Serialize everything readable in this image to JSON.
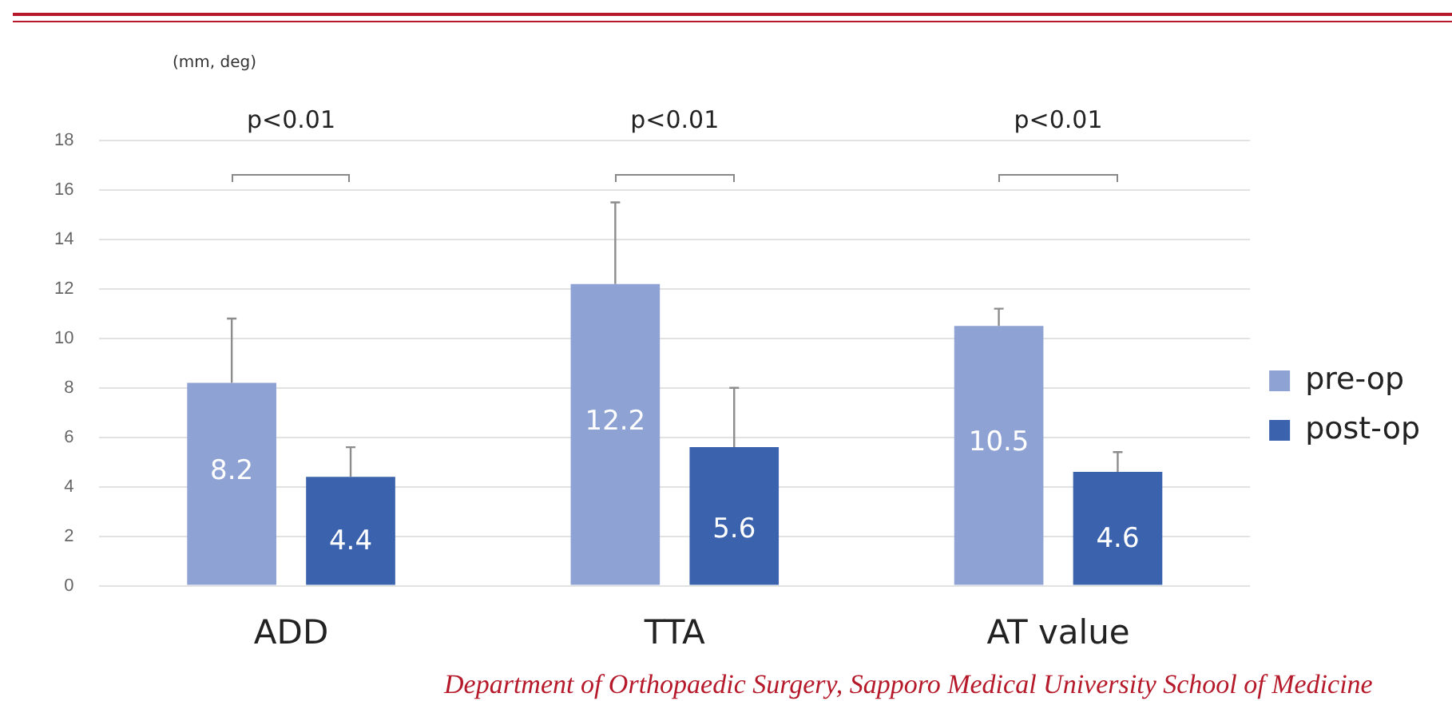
{
  "chart_data": {
    "type": "bar",
    "ylabel": "(mm, deg)",
    "categories": [
      "ADD",
      "TTA",
      "AT value"
    ],
    "series": [
      {
        "name": "pre-op",
        "color": "#8fa2d4",
        "values": [
          8.2,
          12.2,
          10.5
        ],
        "errors": [
          [
            8.2,
            10.8
          ],
          [
            12.2,
            15.5
          ],
          [
            10.5,
            11.2
          ]
        ]
      },
      {
        "name": "post-op",
        "color": "#3a62ad",
        "values": [
          4.4,
          5.6,
          4.6
        ],
        "errors": [
          [
            4.4,
            5.6
          ],
          [
            5.6,
            8.0
          ],
          [
            4.6,
            5.4
          ]
        ]
      }
    ],
    "ylim": [
      0,
      18
    ],
    "yticks": [
      0,
      2,
      4,
      6,
      8,
      10,
      12,
      14,
      16,
      18
    ],
    "grid": "y",
    "legend": "right",
    "data_labels": true,
    "annotations": [
      "p<0.01",
      "p<0.01",
      "p<0.01",
      "Department of Orthopaedic Surgery, Sapporo Medical University School of Medicine"
    ]
  }
}
